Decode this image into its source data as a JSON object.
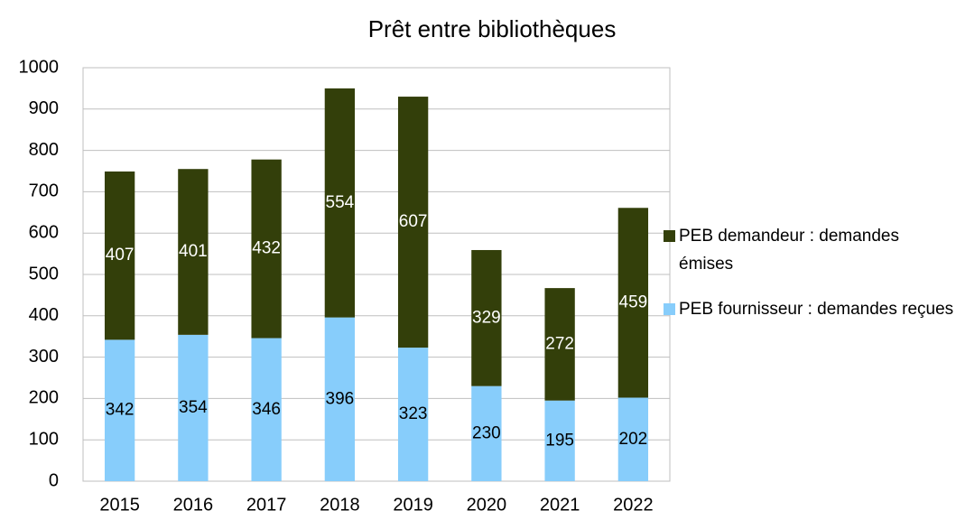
{
  "chart_data": {
    "type": "stacked_bar",
    "title": "Prêt entre bibliothèques",
    "categories": [
      "2015",
      "2016",
      "2017",
      "2018",
      "2019",
      "2020",
      "2021",
      "2022"
    ],
    "series": [
      {
        "name": "PEB fournisseur : demandes reçues",
        "color": "#87cdfb",
        "label_color": "#000000",
        "values": [
          342,
          354,
          346,
          396,
          323,
          230,
          195,
          202
        ]
      },
      {
        "name": "PEB demandeur : demandes émises",
        "color": "#333f0a",
        "label_color": "#ffffff",
        "values": [
          407,
          401,
          432,
          554,
          607,
          329,
          272,
          459
        ]
      }
    ],
    "ylim": [
      0,
      1000
    ],
    "yticks": [
      0,
      100,
      200,
      300,
      400,
      500,
      600,
      700,
      800,
      900,
      1000
    ],
    "grid": true,
    "legend": "right"
  }
}
